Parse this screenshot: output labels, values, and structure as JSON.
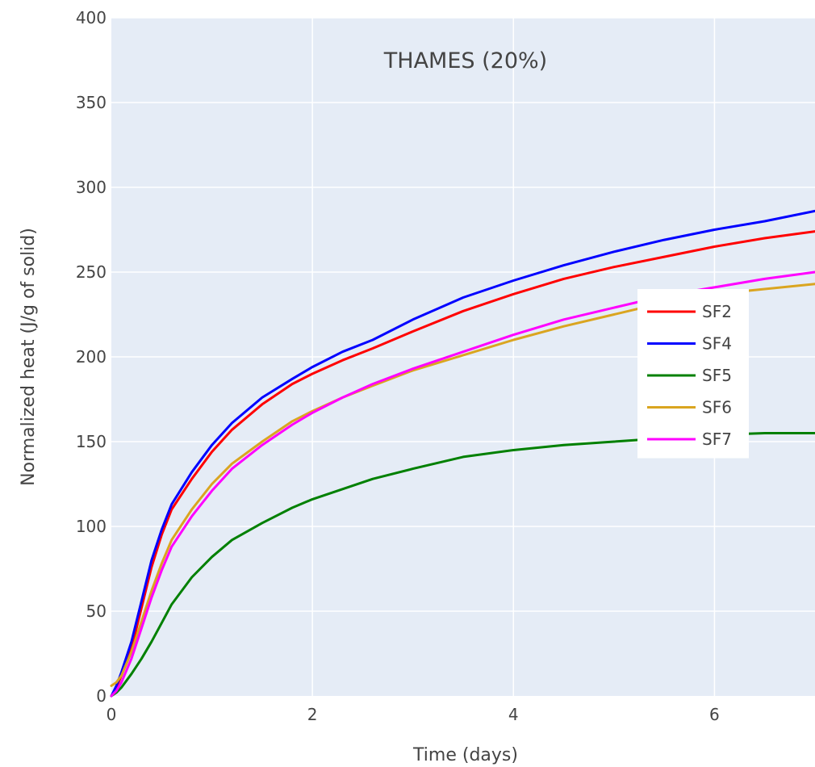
{
  "chart_data": {
    "type": "line",
    "title": "THAMES (20%)",
    "xlabel": "Time (days)",
    "ylabel": "Normalized heat (J/g of solid)",
    "xlim": [
      0,
      7
    ],
    "ylim": [
      0,
      400
    ],
    "xticks": [
      0,
      2,
      4,
      6
    ],
    "yticks": [
      0,
      50,
      100,
      150,
      200,
      250,
      300,
      350,
      400
    ],
    "grid": true,
    "legend_position": "right",
    "background": "#e5ecf6",
    "series": [
      {
        "name": "SF2",
        "color": "#ff0000",
        "x": [
          0,
          0.05,
          0.1,
          0.2,
          0.3,
          0.4,
          0.5,
          0.6,
          0.8,
          1.0,
          1.2,
          1.5,
          1.8,
          2.0,
          2.3,
          2.6,
          3.0,
          3.5,
          4.0,
          4.5,
          5.0,
          5.5,
          6.0,
          6.5,
          7.0
        ],
        "y": [
          0,
          5,
          12,
          28,
          52,
          76,
          95,
          110,
          128,
          144,
          157,
          172,
          184,
          190,
          198,
          205,
          215,
          227,
          237,
          246,
          253,
          259,
          265,
          270,
          274
        ]
      },
      {
        "name": "SF4",
        "color": "#0000ff",
        "x": [
          0,
          0.05,
          0.1,
          0.2,
          0.3,
          0.4,
          0.5,
          0.6,
          0.8,
          1.0,
          1.2,
          1.5,
          1.8,
          2.0,
          2.3,
          2.6,
          3.0,
          3.5,
          4.0,
          4.5,
          5.0,
          5.5,
          6.0,
          6.5,
          7.0
        ],
        "y": [
          0,
          6,
          14,
          32,
          56,
          80,
          98,
          113,
          132,
          148,
          161,
          176,
          187,
          194,
          203,
          210,
          222,
          235,
          245,
          254,
          262,
          269,
          275,
          280,
          286
        ]
      },
      {
        "name": "SF5",
        "color": "#008000",
        "x": [
          0,
          0.05,
          0.1,
          0.2,
          0.3,
          0.4,
          0.5,
          0.6,
          0.8,
          1.0,
          1.2,
          1.5,
          1.8,
          2.0,
          2.3,
          2.6,
          3.0,
          3.5,
          4.0,
          4.5,
          5.0,
          5.5,
          6.0,
          6.5,
          7.0
        ],
        "y": [
          0,
          2,
          5,
          13,
          22,
          32,
          43,
          54,
          70,
          82,
          92,
          102,
          111,
          116,
          122,
          128,
          134,
          141,
          145,
          148,
          150,
          152,
          154,
          155,
          155
        ]
      },
      {
        "name": "SF6",
        "color": "#daa520",
        "x": [
          0,
          0.05,
          0.1,
          0.2,
          0.3,
          0.4,
          0.5,
          0.6,
          0.8,
          1.0,
          1.2,
          1.5,
          1.8,
          2.0,
          2.3,
          2.6,
          3.0,
          3.5,
          4.0,
          4.5,
          5.0,
          5.5,
          6.0,
          6.5,
          7.0
        ],
        "y": [
          6,
          8,
          12,
          26,
          44,
          62,
          78,
          92,
          110,
          125,
          137,
          150,
          162,
          168,
          176,
          183,
          192,
          201,
          210,
          218,
          225,
          232,
          237,
          240,
          243
        ]
      },
      {
        "name": "SF7",
        "color": "#ff00ff",
        "x": [
          0,
          0.05,
          0.1,
          0.2,
          0.3,
          0.4,
          0.5,
          0.6,
          0.8,
          1.0,
          1.2,
          1.5,
          1.8,
          2.0,
          2.3,
          2.6,
          3.0,
          3.5,
          4.0,
          4.5,
          5.0,
          5.5,
          6.0,
          6.5,
          7.0
        ],
        "y": [
          0,
          3,
          8,
          22,
          40,
          58,
          74,
          88,
          106,
          121,
          134,
          148,
          160,
          167,
          176,
          184,
          193,
          203,
          213,
          222,
          229,
          236,
          241,
          246,
          250
        ]
      }
    ]
  }
}
